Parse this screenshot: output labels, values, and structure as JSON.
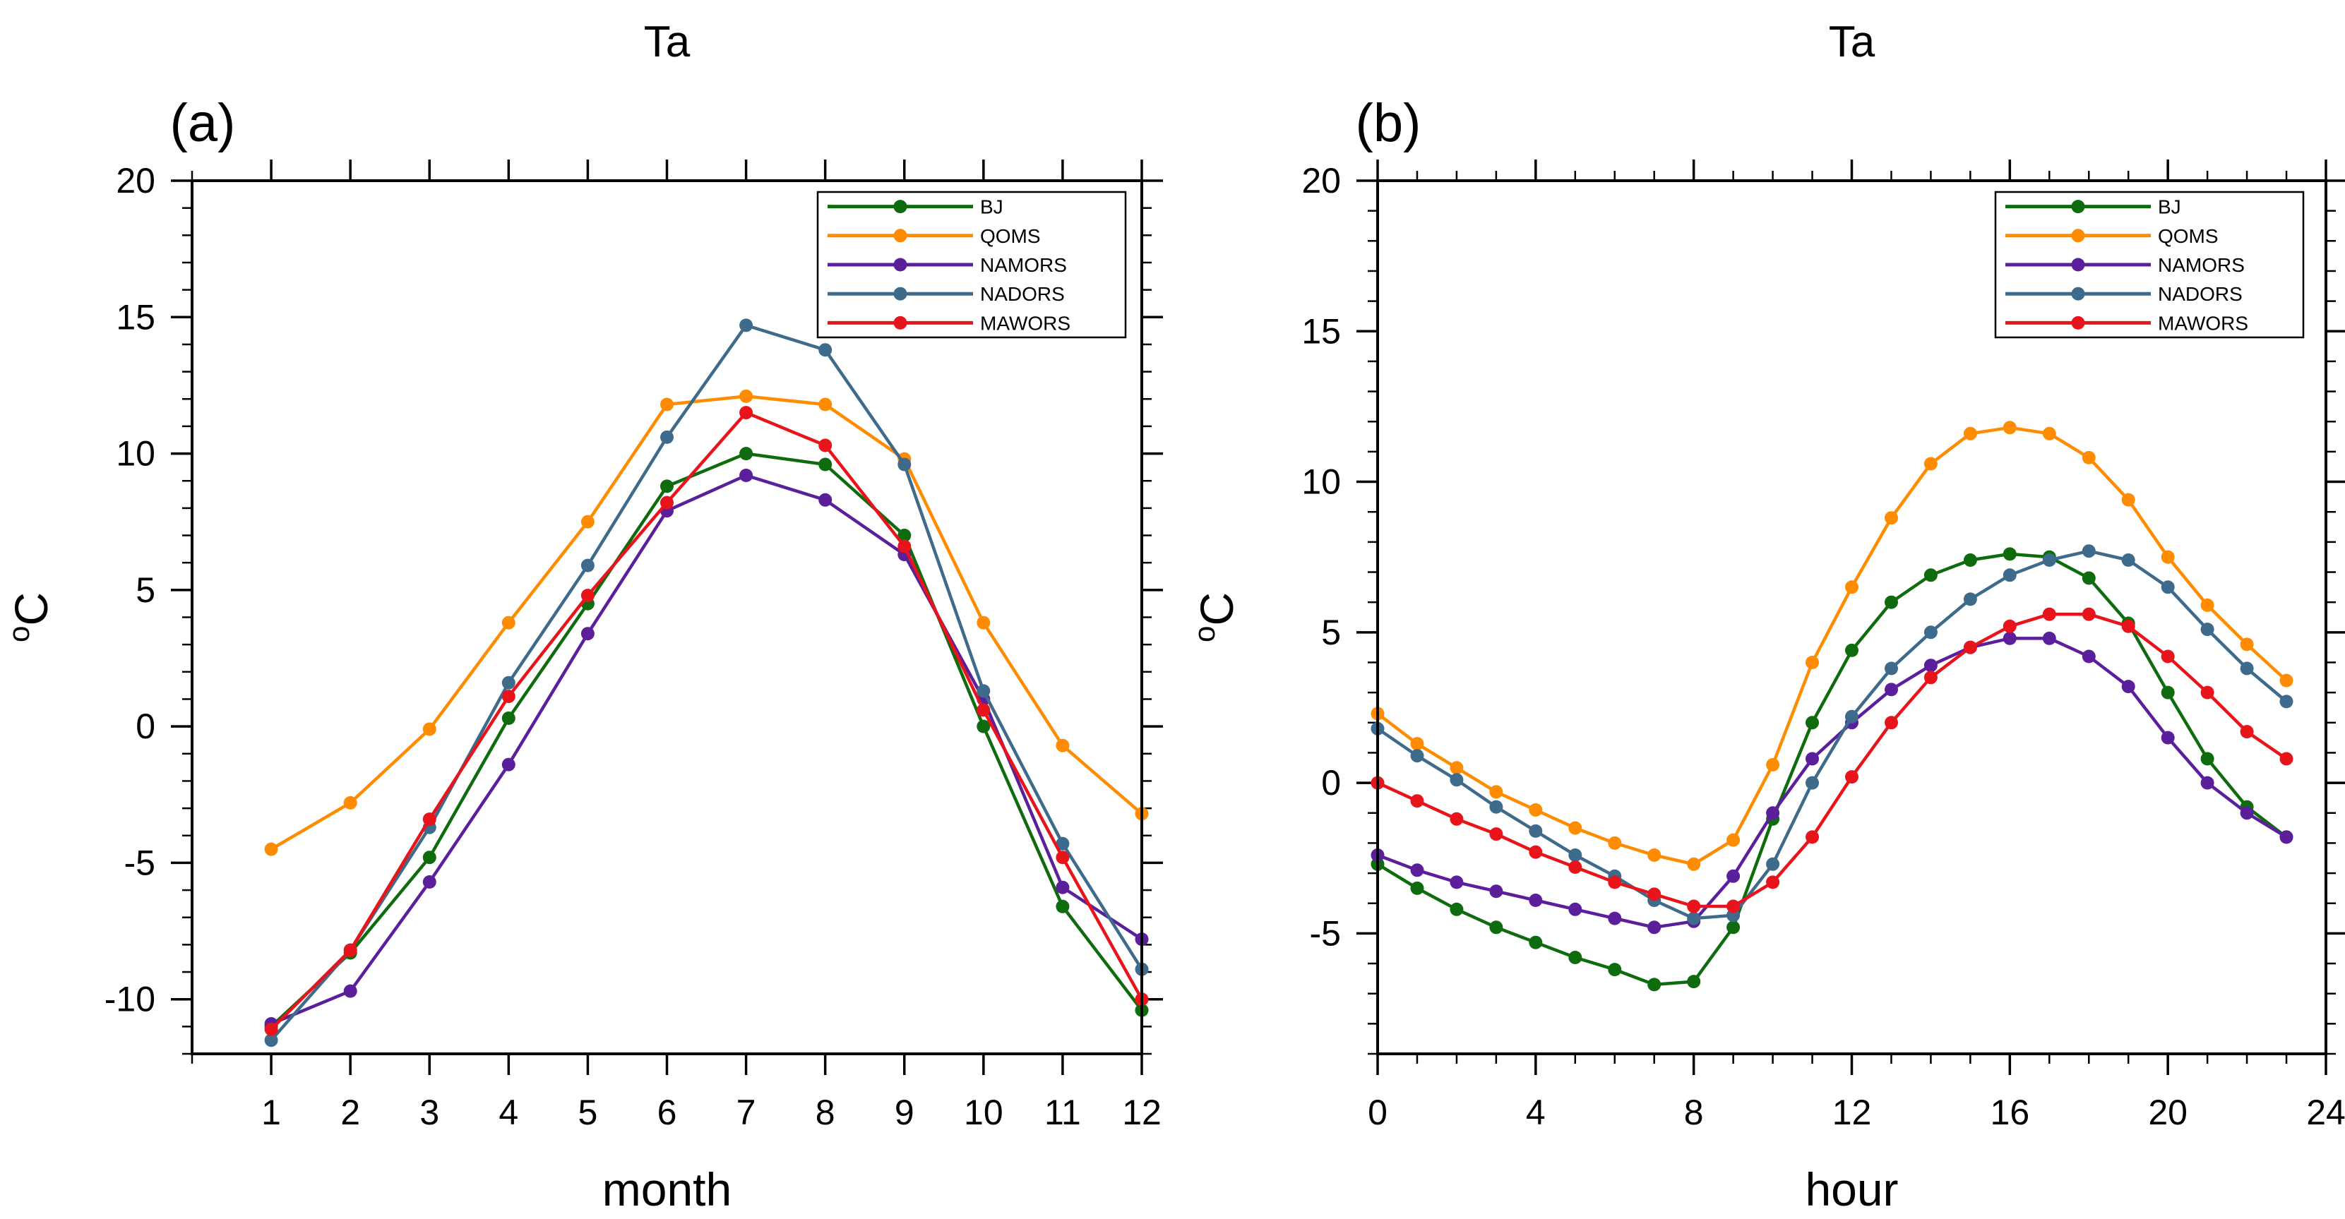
{
  "chart_data": [
    {
      "type": "line",
      "panel_label": "(a)",
      "title": "Ta",
      "xlabel": "month",
      "ylabel": "C",
      "ylabel_superscript": "o",
      "xlim": [
        0,
        12
      ],
      "ylim": [
        -12,
        20
      ],
      "xticks": [
        1,
        2,
        3,
        4,
        5,
        6,
        7,
        8,
        9,
        10,
        11,
        12
      ],
      "yticks": [
        -10,
        -5,
        0,
        5,
        10,
        15,
        20
      ],
      "x": [
        1,
        2,
        3,
        4,
        5,
        6,
        7,
        8,
        9,
        10,
        11,
        12
      ],
      "series": [
        {
          "name": "BJ",
          "color": "#0e6b0e",
          "values": [
            -11.0,
            -8.3,
            -4.8,
            0.3,
            4.5,
            8.8,
            10.0,
            9.6,
            7.0,
            0.0,
            -6.6,
            -10.4
          ]
        },
        {
          "name": "QOMS",
          "color": "#ff8c00",
          "values": [
            -4.5,
            -2.8,
            -0.1,
            3.8,
            7.5,
            11.8,
            12.1,
            11.8,
            9.8,
            3.8,
            -0.7,
            -3.2
          ]
        },
        {
          "name": "NAMORS",
          "color": "#5b1f9c",
          "values": [
            -10.9,
            -9.7,
            -5.7,
            -1.4,
            3.4,
            7.9,
            9.2,
            8.3,
            6.3,
            1.0,
            -5.9,
            -7.8
          ]
        },
        {
          "name": "NADORS",
          "color": "#3e6a8c",
          "values": [
            -11.5,
            -8.2,
            -3.7,
            1.6,
            5.9,
            10.6,
            14.7,
            13.8,
            9.6,
            1.3,
            -4.3,
            -8.9
          ]
        },
        {
          "name": "MAWORS",
          "color": "#e8141c",
          "values": [
            -11.1,
            -8.2,
            -3.4,
            1.1,
            4.8,
            8.2,
            11.5,
            10.3,
            6.6,
            0.6,
            -4.8,
            -10.0
          ]
        }
      ],
      "legend_position": "top-right"
    },
    {
      "type": "line",
      "panel_label": "(b)",
      "title": "Ta",
      "xlabel": "hour",
      "ylabel": "C",
      "ylabel_superscript": "o",
      "xlim": [
        0,
        24
      ],
      "ylim": [
        -9,
        20
      ],
      "xticks": [
        0,
        4,
        8,
        12,
        16,
        20,
        24
      ],
      "yticks": [
        -5,
        0,
        5,
        10,
        15,
        20
      ],
      "x": [
        0,
        1,
        2,
        3,
        4,
        5,
        6,
        7,
        8,
        9,
        10,
        11,
        12,
        13,
        14,
        15,
        16,
        17,
        18,
        19,
        20,
        21,
        22,
        23
      ],
      "series": [
        {
          "name": "BJ",
          "color": "#0e6b0e",
          "values": [
            -2.7,
            -3.5,
            -4.2,
            -4.8,
            -5.3,
            -5.8,
            -6.2,
            -6.7,
            -6.6,
            -4.8,
            -1.2,
            2.0,
            4.4,
            6.0,
            6.9,
            7.4,
            7.6,
            7.5,
            6.8,
            5.3,
            3.0,
            0.8,
            -0.8,
            -1.8
          ]
        },
        {
          "name": "QOMS",
          "color": "#ff8c00",
          "values": [
            2.3,
            1.3,
            0.5,
            -0.3,
            -0.9,
            -1.5,
            -2.0,
            -2.4,
            -2.7,
            -1.9,
            0.6,
            4.0,
            6.5,
            8.8,
            10.6,
            11.6,
            11.8,
            11.6,
            10.8,
            9.4,
            7.5,
            5.9,
            4.6,
            3.4
          ]
        },
        {
          "name": "NAMORS",
          "color": "#5b1f9c",
          "values": [
            -2.4,
            -2.9,
            -3.3,
            -3.6,
            -3.9,
            -4.2,
            -4.5,
            -4.8,
            -4.6,
            -3.1,
            -1.0,
            0.8,
            2.0,
            3.1,
            3.9,
            4.5,
            4.8,
            4.8,
            4.2,
            3.2,
            1.5,
            0.0,
            -1.0,
            -1.8
          ]
        },
        {
          "name": "NADORS",
          "color": "#3e6a8c",
          "values": [
            1.8,
            0.9,
            0.1,
            -0.8,
            -1.6,
            -2.4,
            -3.1,
            -3.9,
            -4.5,
            -4.4,
            -2.7,
            0.0,
            2.2,
            3.8,
            5.0,
            6.1,
            6.9,
            7.4,
            7.7,
            7.4,
            6.5,
            5.1,
            3.8,
            2.7
          ]
        },
        {
          "name": "MAWORS",
          "color": "#e8141c",
          "values": [
            0.0,
            -0.6,
            -1.2,
            -1.7,
            -2.3,
            -2.8,
            -3.3,
            -3.7,
            -4.1,
            -4.1,
            -3.3,
            -1.8,
            0.2,
            2.0,
            3.5,
            4.5,
            5.2,
            5.6,
            5.6,
            5.2,
            4.2,
            3.0,
            1.7,
            0.8
          ]
        }
      ],
      "legend_position": "top-right"
    }
  ]
}
